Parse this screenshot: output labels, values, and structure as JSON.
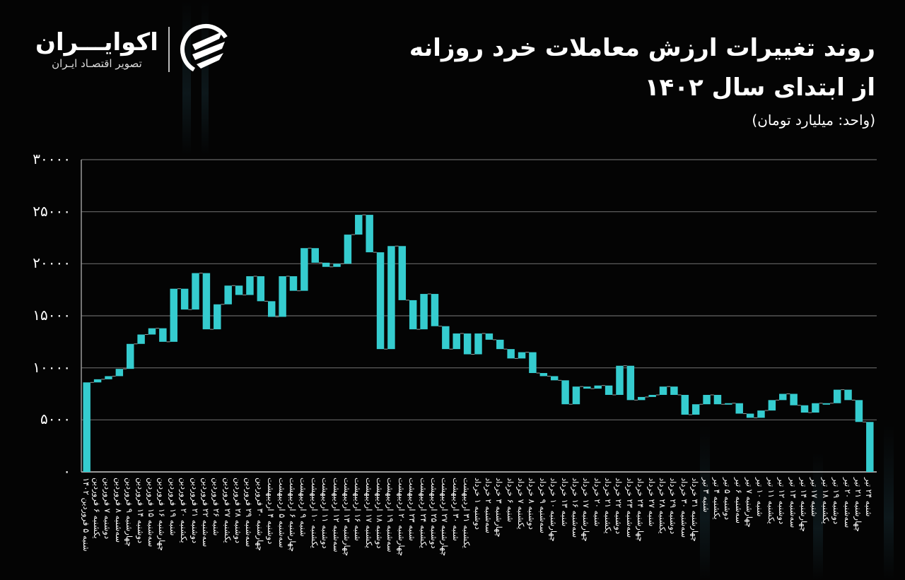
{
  "header": {
    "title_line1": "روند تغییرات ارزش معاملات خرد روزانه",
    "title_line2": "از ابتدای سال ۱۴۰۲",
    "unit": "(واحد: میلیارد تومان)"
  },
  "logo": {
    "name": "اکوایـــران",
    "tagline": "تصویر اقتصـاد ایـران",
    "icon": "ecoiran-logo-icon"
  },
  "colors": {
    "bar": "#35CCCF",
    "background": "#040404",
    "grid": "#666666",
    "axis": "#9a9a9a",
    "text": "#ffffff"
  },
  "chart_data": {
    "type": "bar",
    "subtype": "waterfall",
    "title": "روند تغییرات ارزش معاملات خرد روزانه از ابتدای سال ۱۴۰۲",
    "ylabel": "میلیارد تومان",
    "xlabel": "",
    "ylim": [
      0,
      30000
    ],
    "yticks": [
      "۰",
      "۵۰۰۰",
      "۱۰۰۰۰",
      "۱۵۰۰۰",
      "۲۰۰۰۰",
      "۲۵۰۰۰",
      "۳۰۰۰۰"
    ],
    "grid": true,
    "legend": "none",
    "categories": [
      "شنبه ۵ فروردین ۱۴۰۲",
      "یکشنبه ۶ فروردین",
      "دوشنبه ۷ فروردین",
      "سه‌شنبه ۸ فروردین",
      "چهارشنبه ۹ فروردین",
      "دوشنبه ۱۴ فروردین",
      "سه‌شنبه ۱۵ فروردین",
      "چهارشنبه ۱۶ فروردین",
      "شنبه ۱۹ فروردین",
      "یکشنبه ۲۰ فروردین",
      "دوشنبه ۲۱ فروردین",
      "سه‌شنبه ۲۲ فروردین",
      "شنبه ۲۶ فروردین",
      "یکشنبه ۲۷ فروردین",
      "دوشنبه ۲۸ فروردین",
      "سه‌شنبه ۲۹ فروردین",
      "چهارشنبه ۳۰ فروردین",
      "دوشنبه ۴ اردیبهشت",
      "سه‌شنبه ۵ اردیبهشت",
      "چهارشنبه ۶ اردیبهشت",
      "شنبه ۹ اردیبهشت",
      "یکشنبه ۱۰ اردیبهشت",
      "دوشنبه ۱۱ اردیبهشت",
      "سه‌شنبه ۱۲ اردیبهشت",
      "چهارشنبه ۱۳ اردیبهشت",
      "شنبه ۱۶ اردیبهشت",
      "یکشنبه ۱۷ اردیبهشت",
      "دوشنبه ۱۸ اردیبهشت",
      "سه‌شنبه ۱۹ اردیبهشت",
      "چهارشنبه ۲۰ اردیبهشت",
      "شنبه ۲۳ اردیبهشت",
      "یکشنبه ۲۴ اردیبهشت",
      "دوشنبه ۲۵ اردیبهشت",
      "چهارشنبه ۲۷ اردیبهشت",
      "شنبه ۳۰ اردیبهشت",
      "یکشنبه ۳۱ اردیبهشت",
      "دوشنبه ۱ خرداد",
      "سه‌شنبه ۲ خرداد",
      "چهارشنبه ۳ خرداد",
      "شنبه ۶ خرداد",
      "یکشنبه ۷ خرداد",
      "دوشنبه ۸ خرداد",
      "سه‌شنبه ۹ خرداد",
      "چهارشنبه ۱۰ خرداد",
      "شنبه ۱۳ خرداد",
      "سه‌شنبه ۱۶ خرداد",
      "چهارشنبه ۱۷ خرداد",
      "شنبه ۲۰ خرداد",
      "یکشنبه ۲۱ خرداد",
      "دوشنبه ۲۲ خرداد",
      "سه‌شنبه ۲۳ خرداد",
      "چهارشنبه ۲۴ خرداد",
      "شنبه ۲۷ خرداد",
      "یکشنبه ۲۸ خرداد",
      "دوشنبه ۲۹ خرداد",
      "سه‌شنبه ۳۰ خرداد",
      "چهارشنبه ۳۱ خرداد",
      "شنبه ۳ تیر",
      "یکشنبه ۴ تیر",
      "دوشنبه ۵ تیر",
      "سه‌شنبه ۶ تیر",
      "چهارشنبه ۷ تیر",
      "شنبه ۱۰ تیر",
      "یکشنبه ۱۱ تیر",
      "دوشنبه ۱۲ تیر",
      "سه‌شنبه ۱۳ تیر",
      "چهارشنبه ۱۴ تیر",
      "شنبه ۱۷ تیر",
      "یکشنبه ۱۸ تیر",
      "دوشنبه ۱۹ تیر",
      "سه‌شنبه ۲۰ تیر",
      "چهارشنبه ۲۱ تیر",
      "شنبه ۲۴ تیر"
    ],
    "values": [
      8600,
      8900,
      9200,
      9900,
      12300,
      13200,
      13800,
      12500,
      17600,
      15600,
      19100,
      13700,
      16100,
      17900,
      17000,
      18800,
      16400,
      14900,
      18800,
      17400,
      21500,
      20100,
      19700,
      20000,
      22800,
      24700,
      21100,
      11800,
      21700,
      16500,
      13700,
      17100,
      14000,
      11800,
      13300,
      11300,
      13300,
      12700,
      11800,
      10900,
      11500,
      9500,
      9200,
      8800,
      6500,
      8200,
      8000,
      8300,
      7400,
      10200,
      6900,
      7200,
      7400,
      8200,
      7400,
      5500,
      6500,
      7400,
      6500,
      6600,
      5600,
      5200,
      5900,
      6900,
      7500,
      6400,
      5700,
      6600,
      6600,
      7900,
      6900,
      4800,
      0
    ],
    "note": "Waterfall-style: each bar spans from previous day's value to current day's value; first bar from 0. Last bar shows drop to baseline."
  }
}
